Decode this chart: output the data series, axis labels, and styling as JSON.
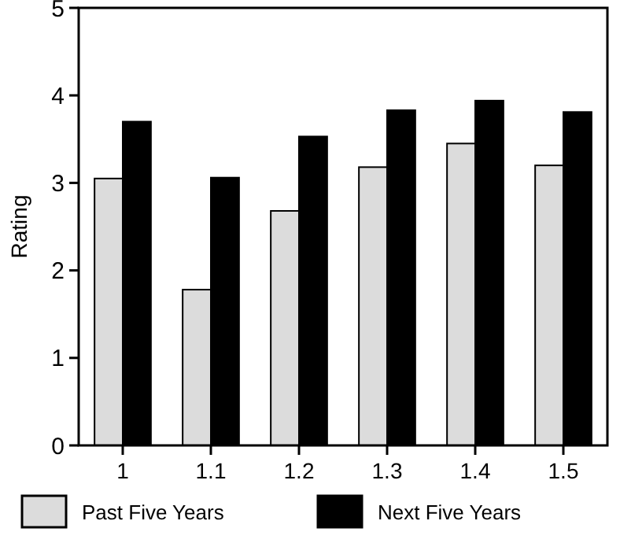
{
  "chart_data": {
    "type": "bar",
    "ylabel": "Rating",
    "categories": [
      "1",
      "1.1",
      "1.2",
      "1.3",
      "1.4",
      "1.5"
    ],
    "series": [
      {
        "name": "Past Five Years",
        "color": "#dcdcdc",
        "values": [
          3.05,
          1.78,
          2.68,
          3.18,
          3.45,
          3.2
        ]
      },
      {
        "name": "Next Five Years",
        "color": "#000000",
        "values": [
          3.7,
          3.06,
          3.53,
          3.83,
          3.94,
          3.81
        ]
      }
    ],
    "ylim": [
      0,
      5
    ],
    "yticks": [
      0,
      1,
      2,
      3,
      4,
      5
    ],
    "grid": false,
    "legend": "bottom"
  }
}
